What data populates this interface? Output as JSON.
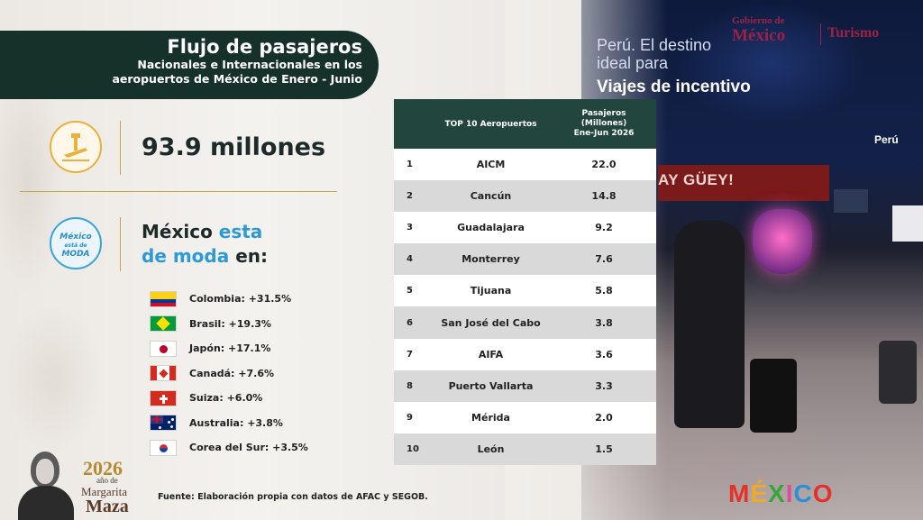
{
  "header": {
    "title": "Flujo de pasajeros",
    "subtitle_line1": "Nacionales e Internacionales en los",
    "subtitle_line2": "aeropuertos de México de Enero - Junio"
  },
  "stat": {
    "value": "93.9 millones",
    "icon": "airport-icon"
  },
  "moda": {
    "title_part1": "México ",
    "title_part2": "esta",
    "title_part3": "de moda",
    "title_part4": " en:",
    "badge_line1": "México",
    "badge_line2": "está de",
    "badge_line3": "MODA"
  },
  "countries": [
    {
      "label": "Colombia: +31.5%",
      "flag": "colombia-flag-icon"
    },
    {
      "label": "Brasil: +19.3%",
      "flag": "brazil-flag-icon"
    },
    {
      "label": "Japón: +17.1%",
      "flag": "japan-flag-icon"
    },
    {
      "label": "Canadá: +7.6%",
      "flag": "canada-flag-icon"
    },
    {
      "label": "Suiza: +6.0%",
      "flag": "switzerland-flag-icon"
    },
    {
      "label": "Australia: +3.8%",
      "flag": "australia-flag-icon"
    },
    {
      "label": "Corea del Sur: +3.5%",
      "flag": "south-korea-flag-icon"
    }
  ],
  "table": {
    "header_name": "TOP 10 Aeropuertos",
    "header_value": "Pasajeros\n(Millones)\nEne-Jun 2026",
    "rows": [
      {
        "rank": "1",
        "name": "AICM",
        "value": "22.0"
      },
      {
        "rank": "2",
        "name": "Cancún",
        "value": "14.8"
      },
      {
        "rank": "3",
        "name": "Guadalajara",
        "value": "9.2"
      },
      {
        "rank": "4",
        "name": "Monterrey",
        "value": "7.6"
      },
      {
        "rank": "5",
        "name": "Tijuana",
        "value": "5.8"
      },
      {
        "rank": "6",
        "name": "San José del Cabo",
        "value": "3.8"
      },
      {
        "rank": "7",
        "name": "AIFA",
        "value": "3.6"
      },
      {
        "rank": "8",
        "name": "Puerto Vallarta",
        "value": "3.3"
      },
      {
        "rank": "9",
        "name": "Mérida",
        "value": "2.0"
      },
      {
        "rank": "10",
        "name": "León",
        "value": "1.5"
      }
    ]
  },
  "source": "Fuente: Elaboración propia con datos de AFAC y SEGOB.",
  "margarita": {
    "year": "2026",
    "sub": "año de",
    "name1": "Margarita",
    "name2": "Maza"
  },
  "gov_logo": {
    "line1": "Gobierno de",
    "line2": "México",
    "line3": "Turismo"
  },
  "photo": {
    "line1": "Perú. El destino",
    "line2": "ideal para",
    "line3": "Viajes de incentivo",
    "peru_sign": "Perú",
    "store_sign": "AY GÜEY!"
  },
  "brand_logo": [
    "M",
    "É",
    "X",
    "I",
    "C",
    "O"
  ]
}
